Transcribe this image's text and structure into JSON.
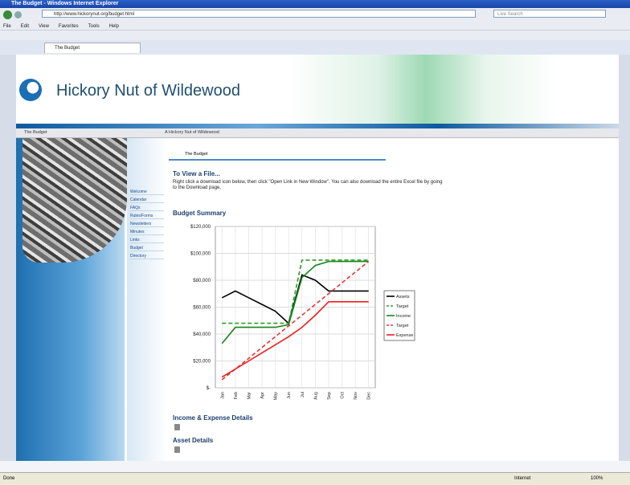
{
  "browser": {
    "window_title": "The Budget - Windows Internet Explorer",
    "address": "http://www.hickorynut.org/budget.html",
    "search_placeholder": "Live Search",
    "menu": [
      "File",
      "Edit",
      "View",
      "Favorites",
      "Tools",
      "Help"
    ],
    "tab": "The Budget",
    "status": "Done",
    "zone": "Internet",
    "zoom": "100%"
  },
  "site": {
    "title": "Hickory Nut of Wildewood",
    "section": "The Budget",
    "breadcrumb": "A Hickory Nut of Wildewood",
    "nav": [
      "Welcome",
      "Calendar",
      "FAQs",
      "Rules/Forms",
      "Newsletters",
      "Minutes",
      "Links",
      "Budget",
      "Directory"
    ],
    "page_tab": "The Budget",
    "intro_heading": "To View a File...",
    "intro_text": "Right click a download icon below, then click \"Open Link in New Window\". You can also download the entire Excel file by going to the Download page.",
    "downloads": [
      "Income & Expense Details",
      "Asset Details"
    ]
  },
  "chart_data": {
    "type": "line",
    "title": "Budget Summary",
    "categories": [
      "Jan",
      "Feb",
      "Mar",
      "Apr",
      "May",
      "Jun",
      "Jul",
      "Aug",
      "Sep",
      "Oct",
      "Nov",
      "Dec"
    ],
    "series": [
      {
        "name": "Assets",
        "color": "#000000",
        "dashed": false,
        "values": [
          67000,
          72000,
          67000,
          62000,
          57000,
          48000,
          84000,
          80000,
          72000,
          72000,
          72000,
          72000
        ]
      },
      {
        "name": "Target",
        "color": "#2e9a2e",
        "dashed": true,
        "values": [
          48000,
          48000,
          48000,
          48000,
          48000,
          48000,
          95000,
          95000,
          95000,
          95000,
          95000,
          95000
        ]
      },
      {
        "name": "Income",
        "color": "#1a841a",
        "dashed": false,
        "values": [
          33000,
          45000,
          45000,
          45000,
          45000,
          47000,
          82000,
          91000,
          94000,
          94000,
          94000,
          94000
        ]
      },
      {
        "name": "Target",
        "color": "#e03a3a",
        "dashed": true,
        "values": [
          6000,
          14000,
          22000,
          30000,
          38000,
          46000,
          54000,
          62000,
          70000,
          78000,
          86000,
          94000
        ]
      },
      {
        "name": "Expense",
        "color": "#ee1f1f",
        "dashed": false,
        "values": [
          8000,
          14000,
          20000,
          26000,
          32000,
          38000,
          45000,
          54000,
          64000,
          64000,
          64000,
          64000
        ]
      }
    ],
    "ylim": [
      0,
      120000
    ],
    "yticks": [
      {
        "value": 0,
        "label": "$-"
      },
      {
        "value": 20000,
        "label": "$20,000"
      },
      {
        "value": 40000,
        "label": "$40,000"
      },
      {
        "value": 60000,
        "label": "$60,000"
      },
      {
        "value": 80000,
        "label": "$80,000"
      },
      {
        "value": 100000,
        "label": "$100,000"
      },
      {
        "value": 120000,
        "label": "$120,000"
      }
    ],
    "grid": true,
    "legend": "right"
  }
}
